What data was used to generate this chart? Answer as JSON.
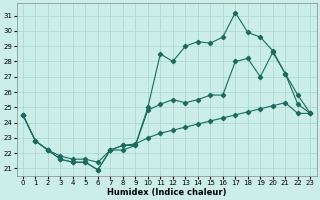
{
  "xlabel": "Humidex (Indice chaleur)",
  "bg_color": "#cceee8",
  "grid_color": "#a8d8d0",
  "line_color": "#1a6b5e",
  "xlim": [
    -0.5,
    23.5
  ],
  "ylim": [
    20.5,
    31.8
  ],
  "yticks": [
    21,
    22,
    23,
    24,
    25,
    26,
    27,
    28,
    29,
    30,
    31
  ],
  "xticks": [
    0,
    1,
    2,
    3,
    4,
    5,
    6,
    7,
    8,
    9,
    10,
    11,
    12,
    13,
    14,
    15,
    16,
    17,
    18,
    19,
    20,
    21,
    22,
    23
  ],
  "series1_x": [
    0,
    1,
    2,
    3,
    4,
    5,
    6,
    7,
    8,
    9,
    10,
    11,
    12,
    13,
    14,
    15,
    16,
    17,
    18,
    19,
    20,
    21,
    22,
    23
  ],
  "series1_y": [
    24.5,
    22.8,
    22.2,
    21.6,
    21.4,
    21.4,
    20.9,
    22.2,
    22.2,
    22.5,
    25.0,
    28.5,
    28.0,
    29.0,
    29.3,
    29.2,
    29.6,
    31.2,
    29.9,
    29.6,
    28.7,
    27.2,
    25.2,
    24.6
  ],
  "series2_x": [
    0,
    1,
    2,
    3,
    4,
    5,
    6,
    7,
    8,
    9,
    10,
    11,
    12,
    13,
    14,
    15,
    16,
    17,
    18,
    19,
    20,
    21,
    22,
    23
  ],
  "series2_y": [
    24.5,
    22.8,
    22.2,
    21.6,
    21.4,
    21.4,
    20.9,
    22.2,
    22.5,
    22.5,
    24.8,
    25.2,
    25.5,
    25.3,
    25.5,
    25.8,
    25.8,
    28.0,
    28.2,
    27.0,
    28.6,
    27.2,
    25.8,
    24.6
  ],
  "series3_x": [
    0,
    1,
    2,
    3,
    4,
    5,
    6,
    7,
    8,
    9,
    10,
    11,
    12,
    13,
    14,
    15,
    16,
    17,
    18,
    19,
    20,
    21,
    22,
    23
  ],
  "series3_y": [
    24.5,
    22.8,
    22.2,
    21.8,
    21.6,
    21.6,
    21.4,
    22.2,
    22.5,
    22.6,
    23.0,
    23.3,
    23.5,
    23.7,
    23.9,
    24.1,
    24.3,
    24.5,
    24.7,
    24.9,
    25.1,
    25.3,
    24.6,
    24.6
  ]
}
